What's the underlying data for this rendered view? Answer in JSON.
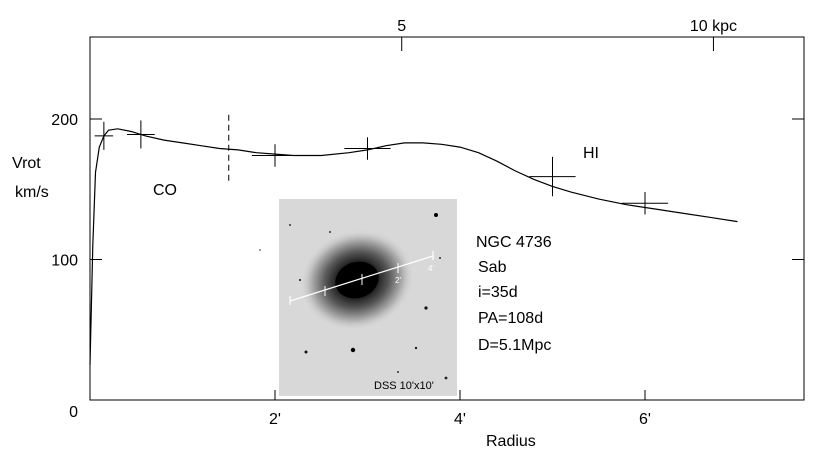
{
  "chart_data": {
    "type": "line",
    "title": "",
    "xlabel": "Radius",
    "ylabel": "Vrot",
    "ylabel_unit": "km/s",
    "xlim": [
      0,
      7.7
    ],
    "ylim": [
      0,
      265
    ],
    "x_tick_labels": [
      "2'",
      "4'",
      "6'"
    ],
    "x_ticks": [
      2,
      4,
      6
    ],
    "y_tick_labels": [
      "0",
      "100",
      "200"
    ],
    "y_ticks": [
      0,
      100,
      200
    ],
    "top_axis": {
      "tick_labels": [
        "5",
        "10 kpc"
      ],
      "ticks_arcmin": [
        3.37,
        6.74
      ]
    },
    "series": [
      {
        "values_x": [
          0.0,
          0.03,
          0.06,
          0.1,
          0.15,
          0.2,
          0.3,
          0.45,
          0.6,
          0.8,
          1.0,
          1.2,
          1.4,
          1.6,
          1.8,
          2.0,
          2.2,
          2.5,
          2.8,
          3.0,
          3.2,
          3.4,
          3.6,
          3.8,
          4.0,
          4.2,
          4.4,
          4.6,
          4.8,
          5.0,
          5.2,
          5.5,
          5.8,
          6.1,
          6.4,
          6.7,
          7.0
        ],
        "values_y": [
          25,
          110,
          162,
          180,
          188,
          192,
          193,
          191,
          188,
          185,
          183,
          181,
          179,
          178,
          176,
          175,
          174,
          174,
          176,
          178,
          181,
          183,
          183,
          182,
          180,
          176,
          170,
          163,
          157,
          152,
          148,
          143,
          139,
          136,
          133,
          130,
          127
        ]
      }
    ],
    "points": [
      {
        "x": 0.15,
        "y": 188,
        "xerr": 0.1,
        "yerr": 10
      },
      {
        "x": 0.55,
        "y": 189,
        "xerr": 0.15,
        "yerr": 10
      },
      {
        "x": 2.0,
        "y": 174,
        "xerr": 0.25,
        "yerr": 8
      },
      {
        "x": 3.0,
        "y": 179,
        "xerr": 0.25,
        "yerr": 8
      },
      {
        "x": 5.0,
        "y": 159,
        "xerr": 0.25,
        "yerr": 14
      },
      {
        "x": 6.0,
        "y": 140,
        "xerr": 0.25,
        "yerr": 8
      }
    ],
    "divider_x": 1.5,
    "annotations": [
      "CO",
      "HI"
    ],
    "inset": {
      "object": "NGC 4736",
      "type": "Sab",
      "inclination": "i=35d",
      "position_angle": "PA=108d",
      "distance": "D=5.1Mpc",
      "caption": "DSS 10'x10'",
      "scale_labels": [
        "2'",
        "4'"
      ]
    }
  }
}
